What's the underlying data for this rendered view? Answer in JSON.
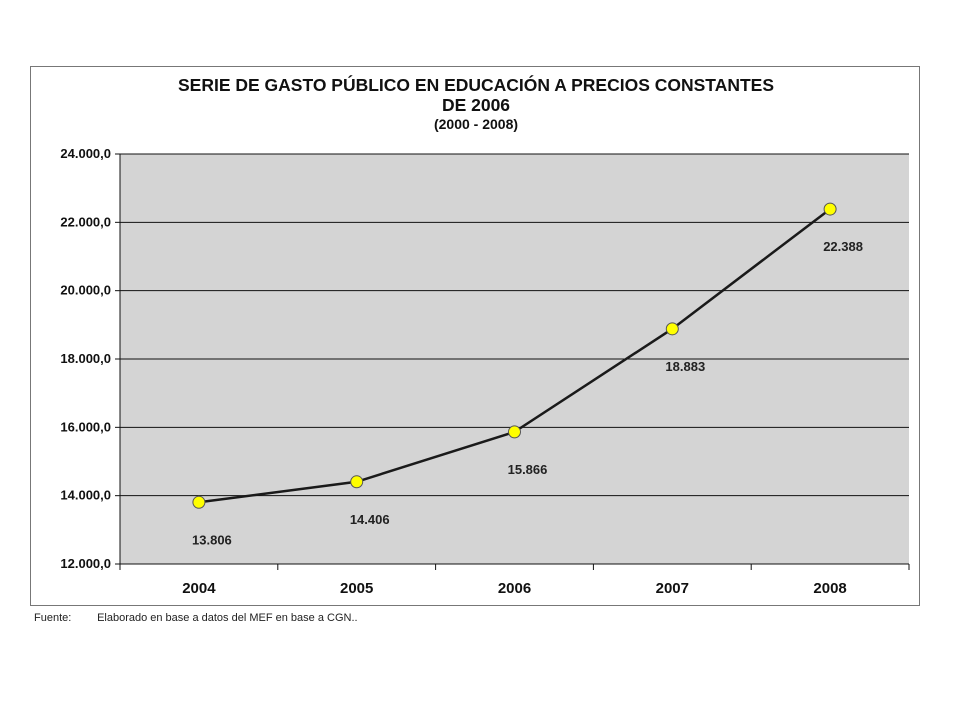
{
  "chart_data": {
    "type": "line",
    "title_line1": "SERIE DE GASTO PÚBLICO EN EDUCACIÓN A PRECIOS CONSTANTES",
    "title_line2": "DE 2006",
    "subtitle": "(2000 - 2008)",
    "categories": [
      "2004",
      "2005",
      "2006",
      "2007",
      "2008"
    ],
    "values": [
      13806,
      14406,
      15866,
      18883,
      22388
    ],
    "data_labels": [
      "13.806",
      "14.406",
      "15.866",
      "18.883",
      "22.388"
    ],
    "ylim": [
      12000,
      24000
    ],
    "yticks": [
      12000,
      14000,
      16000,
      18000,
      20000,
      22000,
      24000
    ],
    "ytick_labels": [
      "12.000,0",
      "14.000,0",
      "16.000,0",
      "18.000,0",
      "20.000,0",
      "22.000,0",
      "24.000,0"
    ],
    "grid": true,
    "legend": "none",
    "colors": {
      "plot_bg": "#d4d4d4",
      "line": "#1a1a1a",
      "marker_fill": "#ffff00",
      "marker_stroke": "#555555"
    }
  },
  "source": {
    "label": "Fuente:",
    "text": "Elaborado en base a datos del MEF en base a CGN.."
  }
}
